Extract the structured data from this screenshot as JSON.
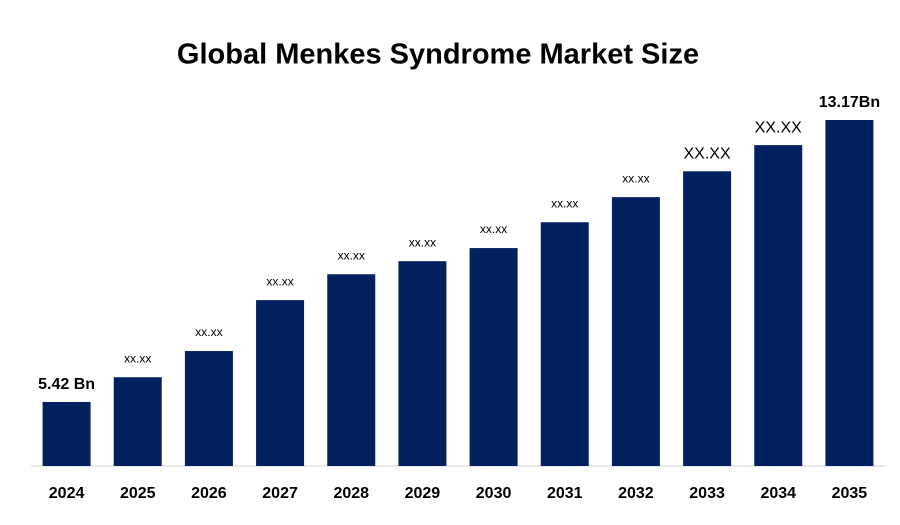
{
  "chart_data": {
    "type": "bar",
    "title": "Global Menkes Syndrome Market Size",
    "categories": [
      "2024",
      "2025",
      "2026",
      "2027",
      "2028",
      "2029",
      "2030",
      "2031",
      "2032",
      "2033",
      "2034",
      "2035"
    ],
    "values": [
      5.42,
      6.1,
      6.82,
      8.22,
      8.93,
      9.29,
      9.65,
      10.36,
      11.05,
      11.76,
      12.48,
      13.17
    ],
    "value_labels": [
      "5.42 Bn",
      "xx.xx",
      "xx.xx",
      "xx.xx",
      "xx.xx",
      "xx.xx",
      "xx.xx",
      "xx.xx",
      "xx.xx",
      "XX.XX",
      "XX.XX",
      "13.17Bn"
    ],
    "color": "#03215f",
    "ylim": [
      3.66,
      13.72
    ]
  }
}
